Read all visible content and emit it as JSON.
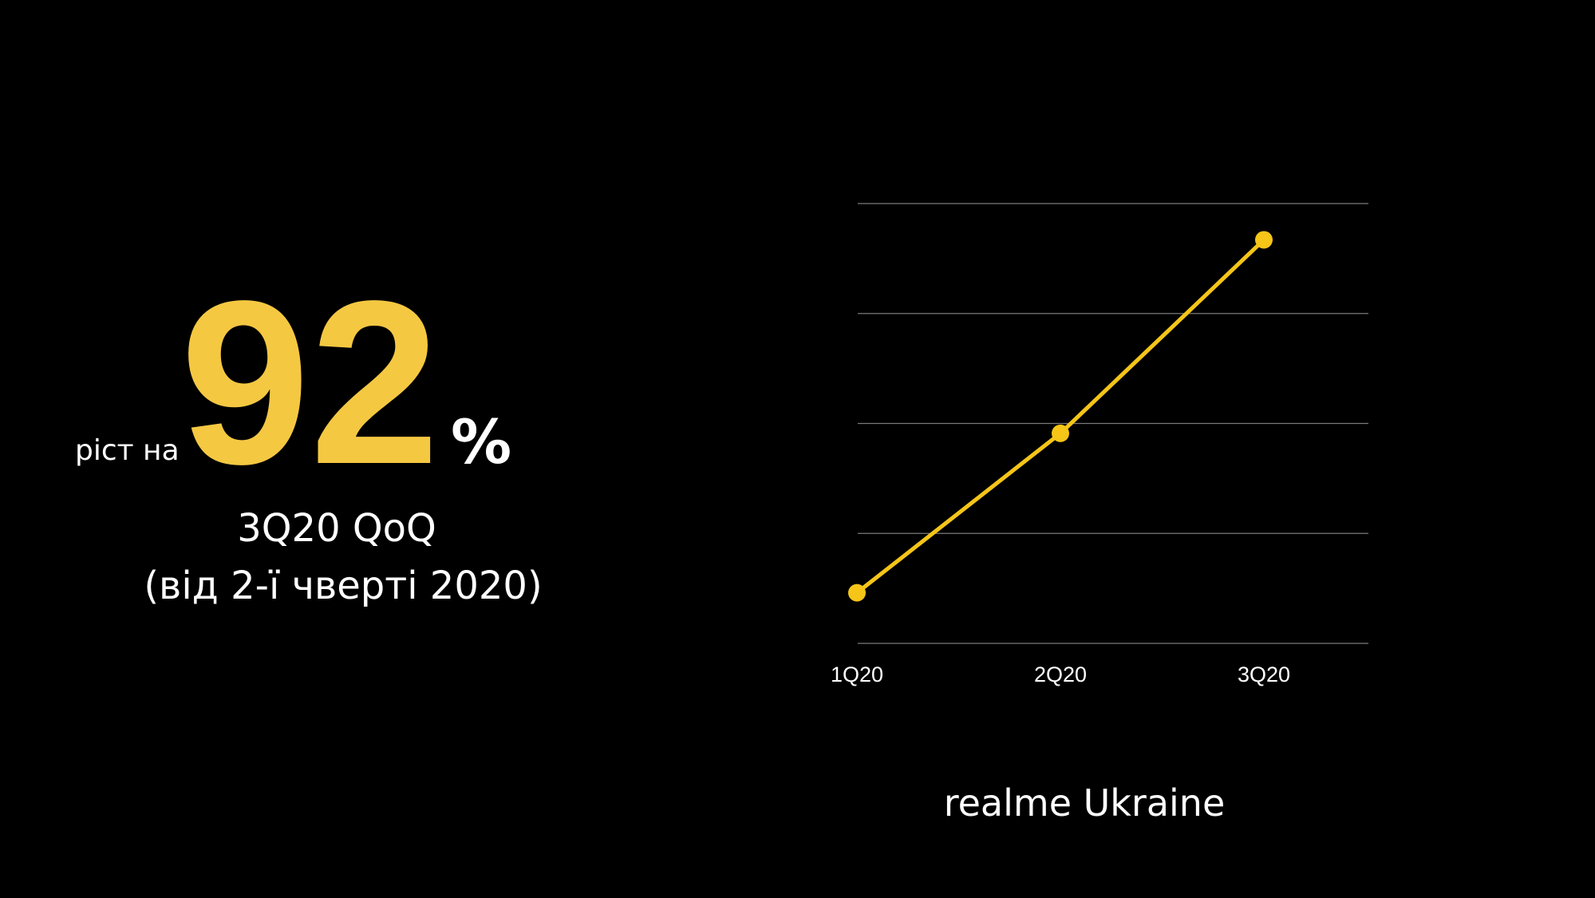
{
  "headline": {
    "prefix": "ріст на",
    "value": 92,
    "unit": "%",
    "line1": "3Q20 QoQ",
    "line2": "(від 2-ї чверті 2020)"
  },
  "chart_data": {
    "type": "line",
    "categories": [
      "1Q20",
      "2Q20",
      "3Q20"
    ],
    "values": [
      0.46,
      1.91,
      3.67
    ],
    "color": "#f5c518",
    "ylim": [
      0,
      4
    ],
    "yticks": [
      0,
      1,
      2,
      3,
      4
    ],
    "grid": true,
    "caption": "realme Ukraine"
  }
}
